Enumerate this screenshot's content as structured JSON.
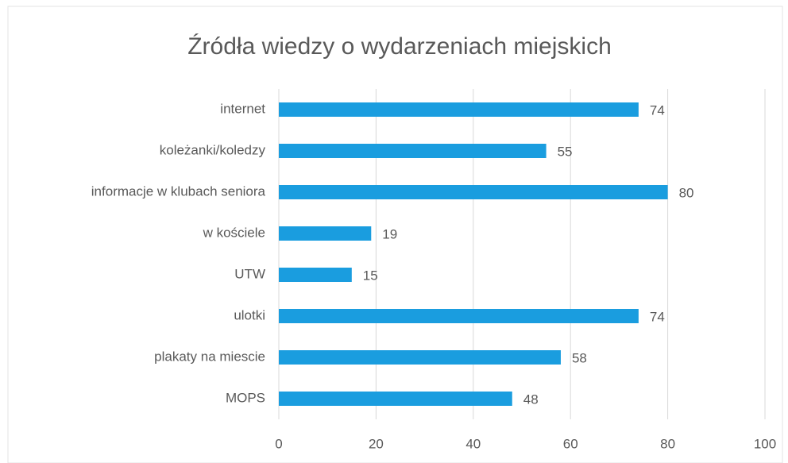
{
  "chart_data": {
    "type": "bar",
    "orientation": "horizontal",
    "title": "Źródła wiedzy o wydarzeniach miejskich",
    "categories": [
      "internet",
      "koleżanki/koledzy",
      "informacje w klubach seniora",
      "w kościele",
      "UTW",
      "ulotki",
      "plakaty na miescie",
      "MOPS"
    ],
    "values": [
      74,
      55,
      80,
      19,
      15,
      74,
      58,
      48
    ],
    "color": "#1a9ddf",
    "xlim": [
      0,
      100
    ],
    "xticks": [
      0,
      20,
      40,
      60,
      80,
      100
    ],
    "grid": true,
    "data_labels": true
  }
}
